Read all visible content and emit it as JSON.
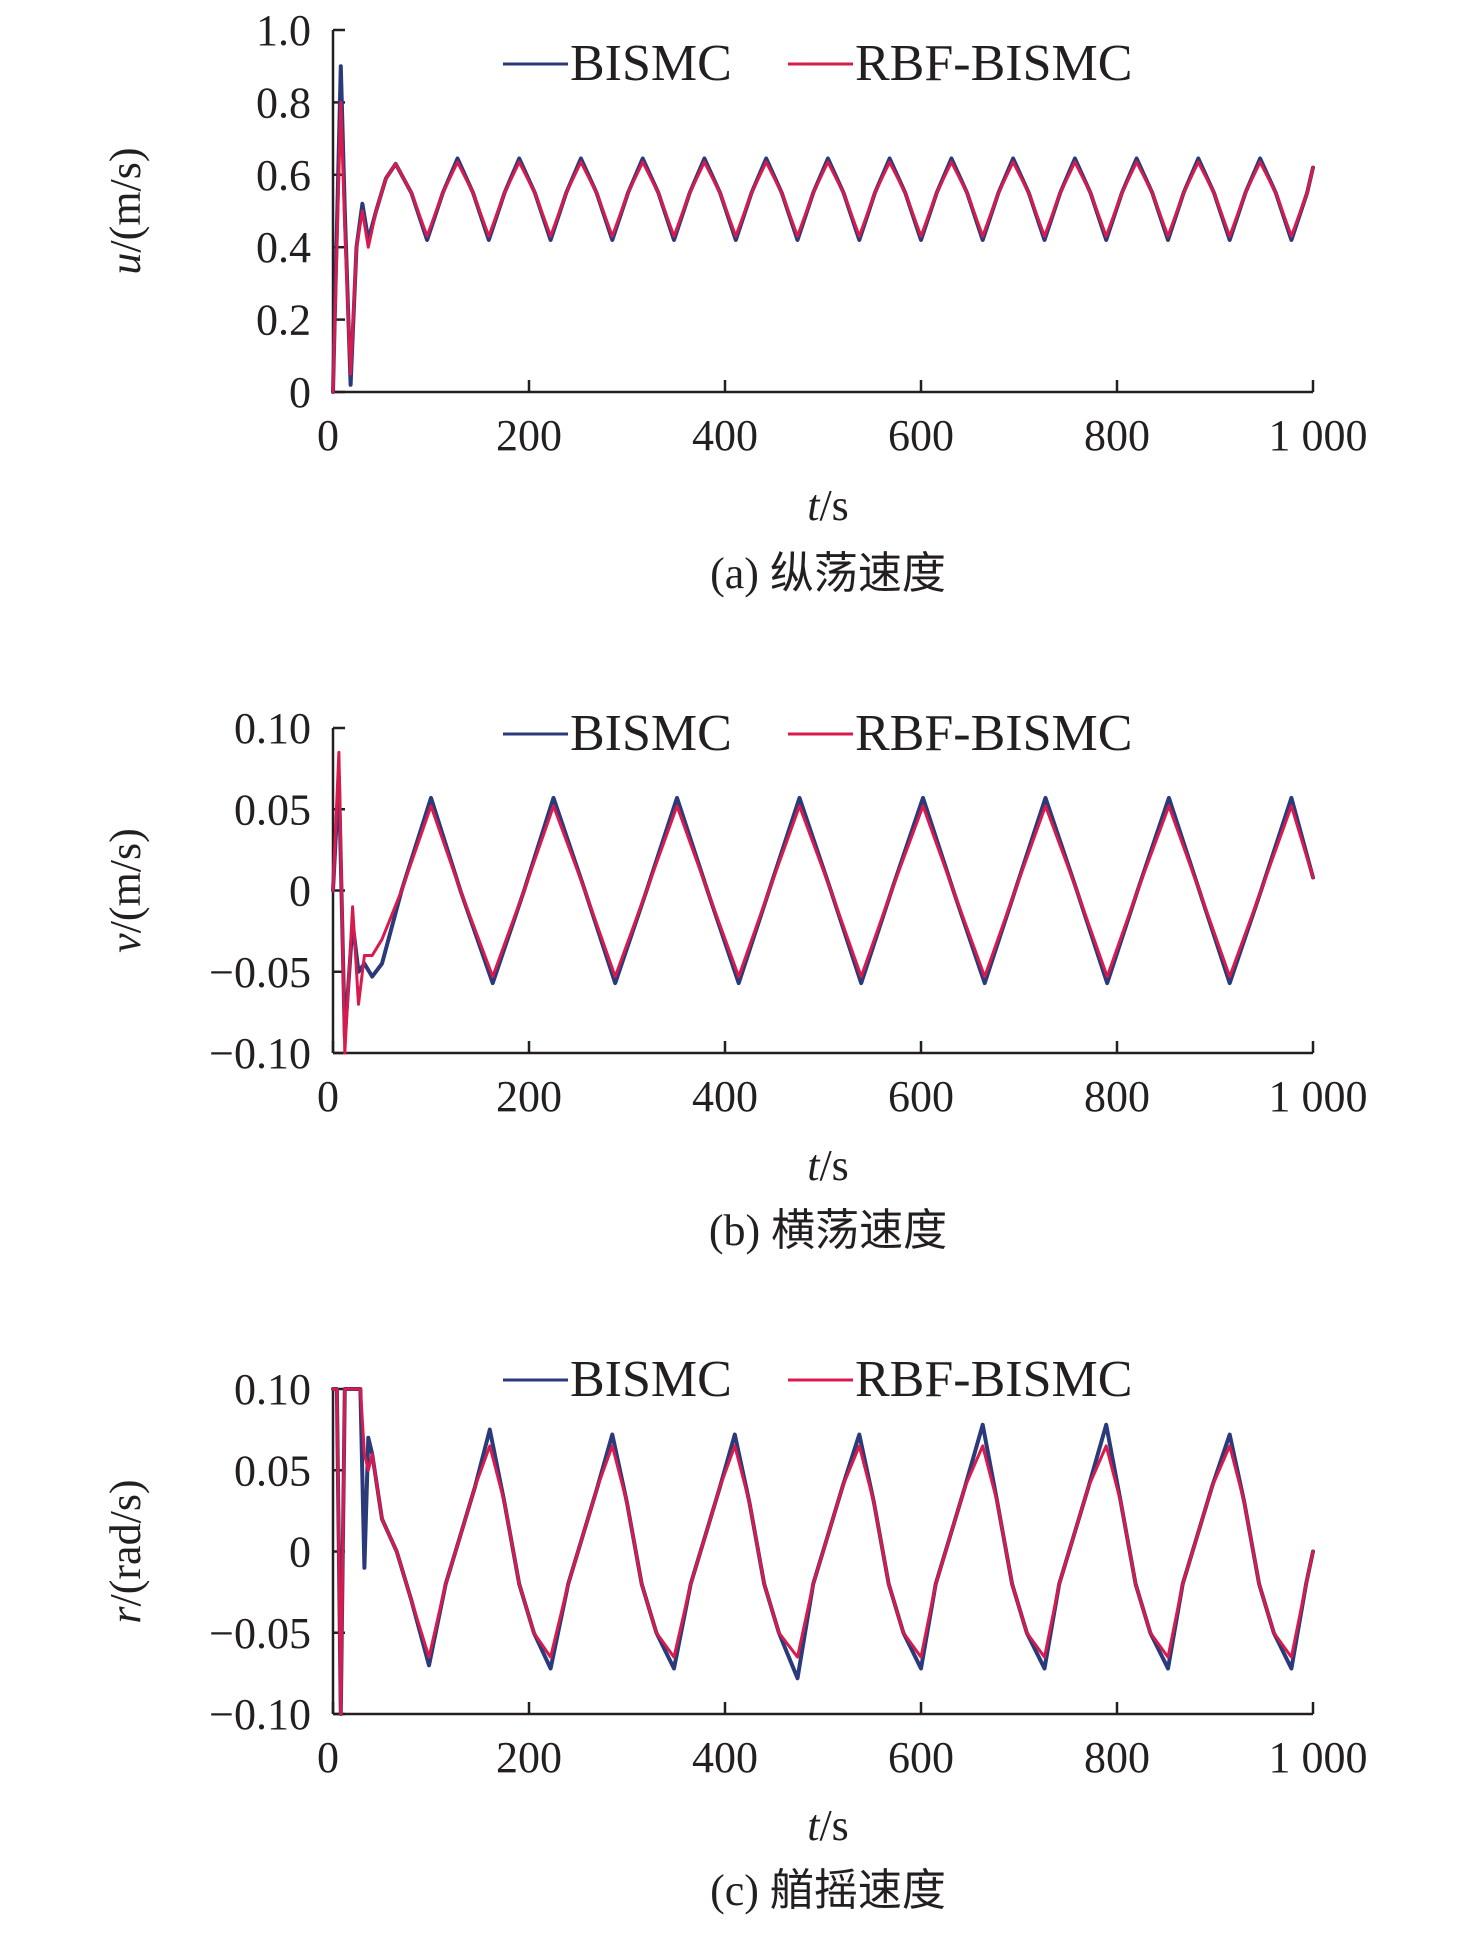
{
  "colors": {
    "bismc": "#2b3a7a",
    "rbf_bismc": "#d81b4c",
    "axis": "#231f20"
  },
  "chart_data": [
    {
      "type": "line",
      "panel": "a",
      "caption": "(a) 纵荡速度",
      "ylabel_var": "u",
      "ylabel_unit": "/(m/s)",
      "xlabel_var": "t",
      "xlabel_unit": "/s",
      "xlim": [
        0,
        1000
      ],
      "ylim": [
        0,
        1.0
      ],
      "x_ticks": [
        0,
        200,
        400,
        600,
        800,
        1000
      ],
      "x_tick_labels": [
        "0",
        "200",
        "400",
        "600",
        "800",
        "1 000"
      ],
      "y_ticks": [
        0,
        0.2,
        0.4,
        0.6,
        0.8,
        1.0
      ],
      "y_tick_labels": [
        "0",
        "0.2",
        "0.4",
        "0.6",
        "0.8",
        "1.0"
      ],
      "legend": [
        "BISMC",
        "RBF-BISMC"
      ],
      "legend_placement": "top",
      "series": [
        {
          "name": "BISMC",
          "x": [
            0,
            8,
            12,
            18,
            24,
            30,
            36,
            44,
            54,
            64,
            80,
            96,
            112,
            127,
            143,
            159,
            175,
            190,
            206,
            222,
            238,
            253,
            269,
            285,
            301,
            316,
            332,
            348,
            364,
            379,
            395,
            411,
            427,
            442,
            458,
            474,
            490,
            505,
            521,
            537,
            553,
            568,
            584,
            600,
            616,
            631,
            647,
            663,
            679,
            694,
            710,
            726,
            742,
            757,
            773,
            789,
            805,
            820,
            836,
            852,
            868,
            883,
            899,
            915,
            931,
            946,
            962,
            978,
            994,
            1000
          ],
          "y": [
            0.0,
            0.9,
            0.5,
            0.02,
            0.4,
            0.52,
            0.42,
            0.5,
            0.59,
            0.63,
            0.55,
            0.42,
            0.55,
            0.645,
            0.55,
            0.42,
            0.55,
            0.645,
            0.55,
            0.42,
            0.55,
            0.645,
            0.55,
            0.42,
            0.55,
            0.645,
            0.55,
            0.42,
            0.55,
            0.645,
            0.55,
            0.42,
            0.55,
            0.645,
            0.55,
            0.42,
            0.55,
            0.645,
            0.55,
            0.42,
            0.55,
            0.645,
            0.55,
            0.42,
            0.55,
            0.645,
            0.55,
            0.42,
            0.55,
            0.645,
            0.55,
            0.42,
            0.55,
            0.645,
            0.55,
            0.42,
            0.55,
            0.645,
            0.55,
            0.42,
            0.55,
            0.645,
            0.55,
            0.42,
            0.55,
            0.645,
            0.55,
            0.42,
            0.55,
            0.62
          ]
        },
        {
          "name": "RBF-BISMC",
          "x": [
            0,
            8,
            12,
            18,
            24,
            30,
            36,
            44,
            54,
            64,
            80,
            96,
            112,
            127,
            143,
            159,
            175,
            190,
            206,
            222,
            238,
            253,
            269,
            285,
            301,
            316,
            332,
            348,
            364,
            379,
            395,
            411,
            427,
            442,
            458,
            474,
            490,
            505,
            521,
            537,
            553,
            568,
            584,
            600,
            616,
            631,
            647,
            663,
            679,
            694,
            710,
            726,
            742,
            757,
            773,
            789,
            805,
            820,
            836,
            852,
            868,
            883,
            899,
            915,
            931,
            946,
            962,
            978,
            994,
            1000
          ],
          "y": [
            0.0,
            0.8,
            0.45,
            0.05,
            0.4,
            0.5,
            0.4,
            0.5,
            0.59,
            0.63,
            0.55,
            0.43,
            0.55,
            0.635,
            0.55,
            0.43,
            0.55,
            0.635,
            0.55,
            0.43,
            0.55,
            0.635,
            0.55,
            0.43,
            0.55,
            0.635,
            0.55,
            0.43,
            0.55,
            0.635,
            0.55,
            0.43,
            0.55,
            0.635,
            0.55,
            0.43,
            0.55,
            0.635,
            0.55,
            0.43,
            0.55,
            0.635,
            0.55,
            0.43,
            0.55,
            0.635,
            0.55,
            0.43,
            0.55,
            0.635,
            0.55,
            0.43,
            0.55,
            0.635,
            0.55,
            0.43,
            0.55,
            0.635,
            0.55,
            0.43,
            0.55,
            0.635,
            0.55,
            0.43,
            0.55,
            0.635,
            0.55,
            0.43,
            0.55,
            0.62
          ]
        }
      ]
    },
    {
      "type": "line",
      "panel": "b",
      "caption": "(b) 横荡速度",
      "ylabel_var": "v",
      "ylabel_unit": "/(m/s)",
      "xlabel_var": "t",
      "xlabel_unit": "/s",
      "xlim": [
        0,
        1000
      ],
      "ylim": [
        -0.1,
        0.1
      ],
      "x_ticks": [
        0,
        200,
        400,
        600,
        800,
        1000
      ],
      "x_tick_labels": [
        "0",
        "200",
        "400",
        "600",
        "800",
        "1 000"
      ],
      "y_ticks": [
        -0.1,
        -0.05,
        0,
        0.05,
        0.1
      ],
      "y_tick_labels": [
        "−0.10",
        "−0.05",
        "0",
        "0.05",
        "0.10"
      ],
      "legend": [
        "BISMC",
        "RBF-BISMC"
      ],
      "legend_placement": "top",
      "series": [
        {
          "name": "BISMC",
          "x": [
            0,
            6,
            12,
            20,
            26,
            32,
            40,
            50,
            70,
            100,
            130,
            163,
            195,
            225,
            257,
            288,
            320,
            351,
            382,
            414,
            445,
            476,
            508,
            539,
            570,
            602,
            633,
            665,
            696,
            727,
            759,
            790,
            821,
            853,
            884,
            915,
            947,
            978,
            1000
          ],
          "y": [
            0.0,
            0.07,
            -0.09,
            -0.02,
            -0.05,
            -0.045,
            -0.053,
            -0.045,
            0.0,
            0.057,
            0.0,
            -0.057,
            0.0,
            0.057,
            0.0,
            -0.057,
            0.0,
            0.057,
            0.0,
            -0.057,
            0.0,
            0.057,
            0.0,
            -0.057,
            0.0,
            0.057,
            0.0,
            -0.057,
            0.0,
            0.057,
            0.0,
            -0.057,
            0.0,
            0.057,
            0.0,
            -0.057,
            0.0,
            0.057,
            0.008
          ]
        },
        {
          "name": "RBF-BISMC",
          "x": [
            0,
            6,
            12,
            20,
            26,
            32,
            40,
            50,
            70,
            100,
            130,
            163,
            195,
            225,
            257,
            288,
            320,
            351,
            382,
            414,
            445,
            476,
            508,
            539,
            570,
            602,
            633,
            665,
            696,
            727,
            759,
            790,
            821,
            853,
            884,
            915,
            947,
            978,
            1000
          ],
          "y": [
            0.0,
            0.085,
            -0.1,
            -0.01,
            -0.07,
            -0.04,
            -0.04,
            -0.03,
            0.0,
            0.052,
            0.0,
            -0.053,
            0.0,
            0.052,
            0.0,
            -0.053,
            0.0,
            0.052,
            0.0,
            -0.053,
            0.0,
            0.052,
            0.0,
            -0.053,
            0.0,
            0.052,
            0.0,
            -0.053,
            0.0,
            0.052,
            0.0,
            -0.053,
            0.0,
            0.052,
            0.0,
            -0.053,
            0.0,
            0.052,
            0.008
          ]
        }
      ]
    },
    {
      "type": "line",
      "panel": "c",
      "caption": "(c) 艏摇速度",
      "ylabel_var": "r",
      "ylabel_unit": "/(rad/s)",
      "xlabel_var": "t",
      "xlabel_unit": "/s",
      "xlim": [
        0,
        1000
      ],
      "ylim": [
        -0.1,
        0.1
      ],
      "x_ticks": [
        0,
        200,
        400,
        600,
        800,
        1000
      ],
      "x_tick_labels": [
        "0",
        "200",
        "400",
        "600",
        "800",
        "1 000"
      ],
      "y_ticks": [
        -0.1,
        -0.05,
        0,
        0.05,
        0.1
      ],
      "y_tick_labels": [
        "−0.10",
        "−0.05",
        "0",
        "0.05",
        "0.10"
      ],
      "legend": [
        "BISMC",
        "RBF-BISMC"
      ],
      "legend_placement": "top",
      "series": [
        {
          "name": "BISMC",
          "x": [
            0,
            4,
            8,
            12,
            28,
            32,
            36,
            40,
            50,
            65,
            80,
            98,
            115,
            130,
            145,
            160,
            175,
            190,
            205,
            222,
            240,
            255,
            270,
            285,
            300,
            315,
            330,
            348,
            365,
            380,
            395,
            410,
            425,
            440,
            455,
            474,
            490,
            505,
            520,
            537,
            552,
            567,
            582,
            600,
            615,
            630,
            645,
            663,
            678,
            693,
            708,
            726,
            741,
            756,
            771,
            789,
            804,
            819,
            834,
            852,
            867,
            882,
            897,
            915,
            930,
            945,
            960,
            978,
            993,
            1000
          ],
          "y": [
            0.1,
            0.1,
            -0.1,
            0.1,
            0.1,
            -0.01,
            0.07,
            0.06,
            0.02,
            0.0,
            -0.03,
            -0.07,
            -0.02,
            0.01,
            0.04,
            0.075,
            0.03,
            -0.02,
            -0.05,
            -0.072,
            -0.02,
            0.01,
            0.04,
            0.072,
            0.03,
            -0.02,
            -0.05,
            -0.072,
            -0.02,
            0.01,
            0.04,
            0.072,
            0.03,
            -0.02,
            -0.05,
            -0.078,
            -0.02,
            0.01,
            0.04,
            0.072,
            0.03,
            -0.02,
            -0.05,
            -0.072,
            -0.02,
            0.01,
            0.04,
            0.078,
            0.03,
            -0.02,
            -0.05,
            -0.072,
            -0.02,
            0.01,
            0.04,
            0.078,
            0.03,
            -0.02,
            -0.05,
            -0.072,
            -0.02,
            0.01,
            0.04,
            0.072,
            0.03,
            -0.02,
            -0.05,
            -0.072,
            -0.02,
            0.0
          ]
        },
        {
          "name": "RBF-BISMC",
          "x": [
            0,
            4,
            8,
            12,
            28,
            32,
            36,
            40,
            50,
            65,
            80,
            98,
            115,
            130,
            145,
            160,
            175,
            190,
            205,
            222,
            240,
            255,
            270,
            285,
            300,
            315,
            330,
            348,
            365,
            380,
            395,
            410,
            425,
            440,
            455,
            474,
            490,
            505,
            520,
            537,
            552,
            567,
            582,
            600,
            615,
            630,
            645,
            663,
            678,
            693,
            708,
            726,
            741,
            756,
            771,
            789,
            804,
            819,
            834,
            852,
            867,
            882,
            897,
            915,
            930,
            945,
            960,
            978,
            993,
            1000
          ],
          "y": [
            0.1,
            0.1,
            -0.1,
            0.1,
            0.1,
            0.06,
            0.05,
            0.06,
            0.02,
            0.0,
            -0.03,
            -0.065,
            -0.02,
            0.01,
            0.04,
            0.065,
            0.03,
            -0.02,
            -0.05,
            -0.065,
            -0.02,
            0.01,
            0.04,
            0.065,
            0.03,
            -0.02,
            -0.05,
            -0.065,
            -0.02,
            0.01,
            0.04,
            0.065,
            0.03,
            -0.02,
            -0.05,
            -0.065,
            -0.02,
            0.01,
            0.04,
            0.065,
            0.03,
            -0.02,
            -0.05,
            -0.065,
            -0.02,
            0.01,
            0.04,
            0.065,
            0.03,
            -0.02,
            -0.05,
            -0.065,
            -0.02,
            0.01,
            0.04,
            0.065,
            0.03,
            -0.02,
            -0.05,
            -0.065,
            -0.02,
            0.01,
            0.04,
            0.065,
            0.03,
            -0.02,
            -0.05,
            -0.065,
            -0.02,
            0.0
          ]
        }
      ]
    }
  ]
}
